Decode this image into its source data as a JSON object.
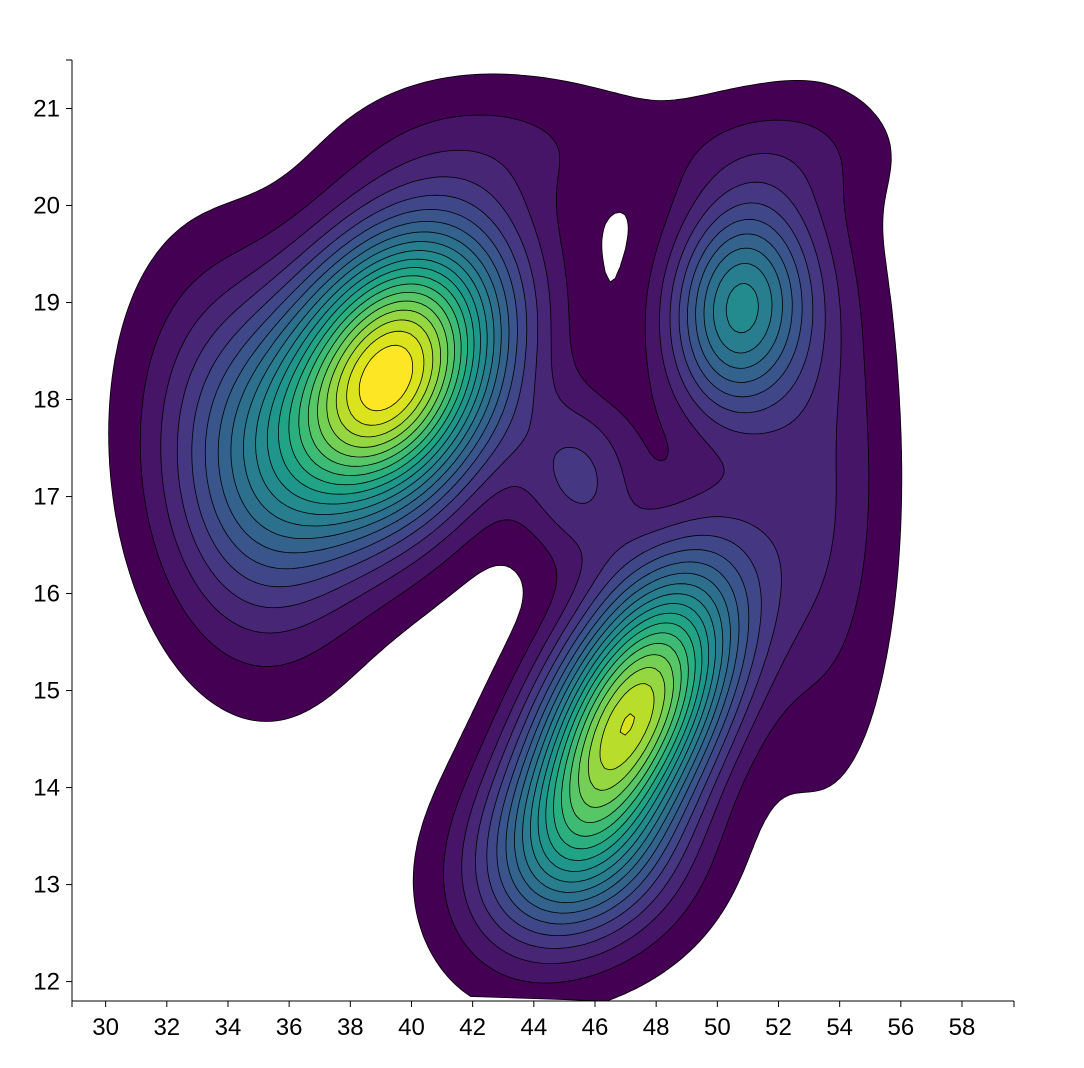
{
  "chart_data": {
    "type": "contour-density",
    "title": "",
    "xlabel": "",
    "ylabel": "",
    "xlim": [
      28.9,
      59.7
    ],
    "ylim": [
      11.8,
      21.5
    ],
    "x_ticks": [
      30,
      32,
      34,
      36,
      38,
      40,
      42,
      44,
      46,
      48,
      50,
      52,
      54,
      56,
      58
    ],
    "y_ticks": [
      12,
      13,
      14,
      15,
      16,
      17,
      18,
      19,
      20,
      21
    ],
    "grid": false,
    "legend": "none",
    "colormap": "viridis",
    "levels": 20,
    "density_peaks": [
      {
        "x": 39.3,
        "y": 18.3,
        "rank": "highest"
      },
      {
        "x": 47.2,
        "y": 14.7,
        "rank": "second"
      },
      {
        "x": 50.6,
        "y": 18.9,
        "rank": "third"
      }
    ],
    "colors": {
      "low": "#440154",
      "high": "#fde725",
      "axis": "#000000",
      "contour_line": "#000000"
    }
  }
}
